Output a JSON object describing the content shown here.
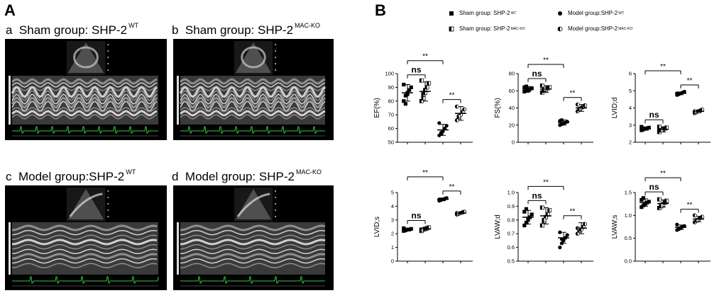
{
  "panelA": {
    "letter": "A",
    "subpanels": [
      {
        "id": "a",
        "letter": "a",
        "label": "Sham group: SHP-2",
        "sup": "WT"
      },
      {
        "id": "b",
        "letter": "b",
        "label": "Sham group: SHP-2",
        "sup": "MAC-KO"
      },
      {
        "id": "c",
        "letter": "c",
        "label": "Model group:SHP-2",
        "sup": "WT"
      },
      {
        "id": "d",
        "letter": "d",
        "label": "Model group: SHP-2",
        "sup": "MAC-KO"
      }
    ]
  },
  "panelB": {
    "letter": "B",
    "legend": [
      {
        "label": "Sham group: SHP-2",
        "sup": "WT",
        "marker": "square"
      },
      {
        "label": "Sham group: SHP-2",
        "sup": "MAC-KO",
        "marker": "half-square"
      },
      {
        "label": "Model group:SHP-2",
        "sup": "WT",
        "marker": "circle"
      },
      {
        "label": "Model group:SHP-2",
        "sup": "MAC-KO",
        "marker": "half-circle"
      }
    ]
  },
  "chart_data": [
    {
      "type": "scatter",
      "ylabel": "EF(%)",
      "ylim": [
        50,
        100
      ],
      "yticks": [
        "50",
        "60",
        "70",
        "80",
        "90",
        "100"
      ],
      "groups": [
        {
          "mean": 86,
          "sd": 6,
          "points": [
            80,
            84,
            86,
            88,
            90,
            92,
            78,
            85
          ]
        },
        {
          "mean": 87,
          "sd": 7,
          "points": [
            80,
            85,
            88,
            90,
            93,
            95,
            82,
            86
          ]
        },
        {
          "mean": 59,
          "sd": 4,
          "points": [
            55,
            57,
            58,
            60,
            62,
            64,
            56
          ]
        },
        {
          "mean": 71,
          "sd": 5,
          "points": [
            66,
            68,
            70,
            72,
            74,
            76,
            69
          ]
        }
      ],
      "annotations": [
        {
          "from": 0,
          "to": 1,
          "text": "ns"
        },
        {
          "from": 2,
          "to": 3,
          "text": "**"
        },
        {
          "from": 0,
          "to": 2,
          "text": "**"
        }
      ]
    },
    {
      "type": "scatter",
      "ylabel": "FS(%)",
      "ylim": [
        0,
        80
      ],
      "yticks": [
        "0",
        "20",
        "40",
        "60",
        "80"
      ],
      "groups": [
        {
          "mean": 62,
          "sd": 3,
          "points": [
            59,
            60,
            61,
            62,
            63,
            64,
            65,
            60
          ]
        },
        {
          "mean": 62,
          "sd": 4,
          "points": [
            58,
            60,
            61,
            63,
            64,
            66,
            62
          ]
        },
        {
          "mean": 23,
          "sd": 3,
          "points": [
            20,
            21,
            22,
            23,
            24,
            25,
            26
          ]
        },
        {
          "mean": 40,
          "sd": 4,
          "points": [
            36,
            38,
            40,
            41,
            43,
            44,
            39
          ]
        }
      ],
      "annotations": [
        {
          "from": 0,
          "to": 1,
          "text": "ns"
        },
        {
          "from": 2,
          "to": 3,
          "text": "**"
        },
        {
          "from": 0,
          "to": 2,
          "text": "**"
        }
      ]
    },
    {
      "type": "scatter",
      "ylabel": "LVID;d",
      "ylim": [
        2,
        6
      ],
      "yticks": [
        "2",
        "3",
        "4",
        "5",
        "6"
      ],
      "groups": [
        {
          "mean": 2.8,
          "sd": 0.1,
          "points": [
            2.7,
            2.75,
            2.8,
            2.8,
            2.85,
            2.9,
            2.75
          ]
        },
        {
          "mean": 2.75,
          "sd": 0.15,
          "points": [
            2.6,
            2.7,
            2.75,
            2.8,
            2.85,
            2.9,
            2.7
          ]
        },
        {
          "mean": 4.85,
          "sd": 0.08,
          "points": [
            4.75,
            4.8,
            4.85,
            4.9,
            4.95,
            4.85,
            4.8
          ]
        },
        {
          "mean": 3.8,
          "sd": 0.08,
          "points": [
            3.7,
            3.75,
            3.8,
            3.85,
            3.9,
            3.8
          ]
        }
      ],
      "annotations": [
        {
          "from": 0,
          "to": 1,
          "text": "ns"
        },
        {
          "from": 2,
          "to": 3,
          "text": "**"
        },
        {
          "from": 0,
          "to": 2,
          "text": "**"
        }
      ]
    },
    {
      "type": "scatter",
      "ylabel": "LVID;s",
      "ylim": [
        0,
        5
      ],
      "yticks": [
        "0",
        "1",
        "2",
        "3",
        "4",
        "5"
      ],
      "groups": [
        {
          "mean": 2.3,
          "sd": 0.1,
          "points": [
            2.2,
            2.25,
            2.3,
            2.3,
            2.35,
            2.4,
            2.25
          ]
        },
        {
          "mean": 2.35,
          "sd": 0.1,
          "points": [
            2.2,
            2.3,
            2.35,
            2.4,
            2.45,
            2.3
          ]
        },
        {
          "mean": 4.5,
          "sd": 0.1,
          "points": [
            4.4,
            4.45,
            4.5,
            4.55,
            4.6,
            4.5,
            4.45
          ]
        },
        {
          "mean": 3.5,
          "sd": 0.08,
          "points": [
            3.4,
            3.45,
            3.5,
            3.55,
            3.6,
            3.5
          ]
        }
      ],
      "annotations": [
        {
          "from": 0,
          "to": 1,
          "text": "ns"
        },
        {
          "from": 2,
          "to": 3,
          "text": "**"
        },
        {
          "from": 0,
          "to": 2,
          "text": "**"
        }
      ]
    },
    {
      "type": "scatter",
      "ylabel": "LVAW;d",
      "ylim": [
        0.5,
        1.0
      ],
      "yticks": [
        "0.5",
        "0.6",
        "0.7",
        "0.8",
        "0.9",
        "1.0"
      ],
      "groups": [
        {
          "mean": 0.82,
          "sd": 0.05,
          "points": [
            0.76,
            0.78,
            0.8,
            0.82,
            0.84,
            0.86,
            0.88,
            0.81
          ]
        },
        {
          "mean": 0.83,
          "sd": 0.06,
          "points": [
            0.76,
            0.79,
            0.82,
            0.84,
            0.87,
            0.89,
            0.8
          ]
        },
        {
          "mean": 0.67,
          "sd": 0.04,
          "points": [
            0.6,
            0.63,
            0.65,
            0.67,
            0.69,
            0.71,
            0.66
          ]
        },
        {
          "mean": 0.74,
          "sd": 0.04,
          "points": [
            0.7,
            0.72,
            0.73,
            0.75,
            0.77,
            0.74
          ]
        }
      ],
      "annotations": [
        {
          "from": 0,
          "to": 1,
          "text": "ns"
        },
        {
          "from": 2,
          "to": 3,
          "text": "**"
        },
        {
          "from": 0,
          "to": 2,
          "text": "**"
        }
      ]
    },
    {
      "type": "scatter",
      "ylabel": "LVAW;s",
      "ylim": [
        0.0,
        1.5
      ],
      "yticks": [
        "0.0",
        "0.5",
        "1.0",
        "1.5"
      ],
      "groups": [
        {
          "mean": 1.28,
          "sd": 0.08,
          "points": [
            1.18,
            1.22,
            1.26,
            1.28,
            1.3,
            1.34,
            1.38,
            1.25
          ]
        },
        {
          "mean": 1.26,
          "sd": 0.08,
          "points": [
            1.16,
            1.2,
            1.24,
            1.28,
            1.32,
            1.35,
            1.22
          ]
        },
        {
          "mean": 0.74,
          "sd": 0.05,
          "points": [
            0.68,
            0.7,
            0.73,
            0.75,
            0.77,
            0.8,
            0.72
          ]
        },
        {
          "mean": 0.92,
          "sd": 0.06,
          "points": [
            0.85,
            0.88,
            0.91,
            0.94,
            0.97,
            1.0,
            0.9
          ]
        }
      ],
      "annotations": [
        {
          "from": 0,
          "to": 1,
          "text": "ns"
        },
        {
          "from": 2,
          "to": 3,
          "text": "**"
        },
        {
          "from": 0,
          "to": 2,
          "text": "**"
        }
      ]
    }
  ]
}
